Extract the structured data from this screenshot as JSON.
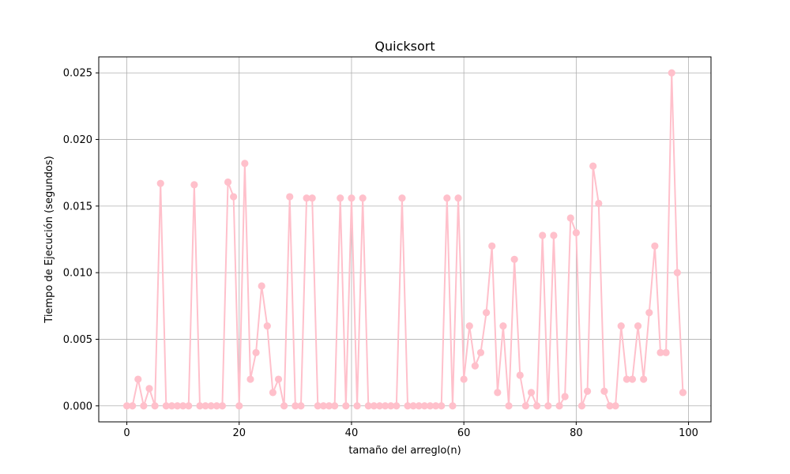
{
  "chart_data": {
    "type": "line",
    "title": "Quicksort",
    "xlabel": "tamaño del arreglo(n)",
    "ylabel": "Tiempo de Ejecución (segundos)",
    "xlim": [
      -5,
      104
    ],
    "ylim": [
      -0.0012,
      0.0262
    ],
    "xticks": [
      0,
      20,
      40,
      60,
      80,
      100
    ],
    "xtick_labels": [
      "0",
      "20",
      "40",
      "60",
      "80",
      "100"
    ],
    "yticks": [
      0.0,
      0.005,
      0.01,
      0.015,
      0.02,
      0.025
    ],
    "ytick_labels": [
      "0.000",
      "0.005",
      "0.010",
      "0.015",
      "0.020",
      "0.025"
    ],
    "grid": true,
    "color": "#ffc0cb",
    "marker": "circle",
    "x": [
      0,
      1,
      2,
      3,
      4,
      5,
      6,
      7,
      8,
      9,
      10,
      11,
      12,
      13,
      14,
      15,
      16,
      17,
      18,
      19,
      20,
      21,
      22,
      23,
      24,
      25,
      26,
      27,
      28,
      29,
      30,
      31,
      32,
      33,
      34,
      35,
      36,
      37,
      38,
      39,
      40,
      41,
      42,
      43,
      44,
      45,
      46,
      47,
      48,
      49,
      50,
      51,
      52,
      53,
      54,
      55,
      56,
      57,
      58,
      59,
      60,
      61,
      62,
      63,
      64,
      65,
      66,
      67,
      68,
      69,
      70,
      71,
      72,
      73,
      74,
      75,
      76,
      77,
      78,
      79,
      80,
      81,
      82,
      83,
      84,
      85,
      86,
      87,
      88,
      89,
      90,
      91,
      92,
      93,
      94,
      95,
      96,
      97,
      98,
      99
    ],
    "y": [
      0.0,
      0.0,
      0.002,
      0.0,
      0.0013,
      0.0,
      0.0167,
      0.0,
      0.0,
      0.0,
      0.0,
      0.0,
      0.0166,
      0.0,
      0.0,
      0.0,
      0.0,
      0.0,
      0.0168,
      0.0157,
      0.0,
      0.0182,
      0.002,
      0.004,
      0.009,
      0.006,
      0.001,
      0.002,
      0.0,
      0.0157,
      0.0,
      0.0,
      0.0156,
      0.0156,
      0.0,
      0.0,
      0.0,
      0.0,
      0.0156,
      0.0,
      0.0156,
      0.0,
      0.0156,
      0.0,
      0.0,
      0.0,
      0.0,
      0.0,
      0.0,
      0.0156,
      0.0,
      0.0,
      0.0,
      0.0,
      0.0,
      0.0,
      0.0,
      0.0156,
      0.0,
      0.0156,
      0.002,
      0.006,
      0.003,
      0.004,
      0.007,
      0.012,
      0.001,
      0.006,
      0.0,
      0.011,
      0.0023,
      0.0,
      0.001,
      0.0,
      0.0128,
      0.0,
      0.0128,
      0.0,
      0.0007,
      0.0141,
      0.013,
      0.0,
      0.0011,
      0.018,
      0.0152,
      0.0011,
      0.0,
      0.0,
      0.006,
      0.002,
      0.002,
      0.006,
      0.002,
      0.007,
      0.012,
      0.004,
      0.004,
      0.025,
      0.01,
      0.001
    ]
  }
}
